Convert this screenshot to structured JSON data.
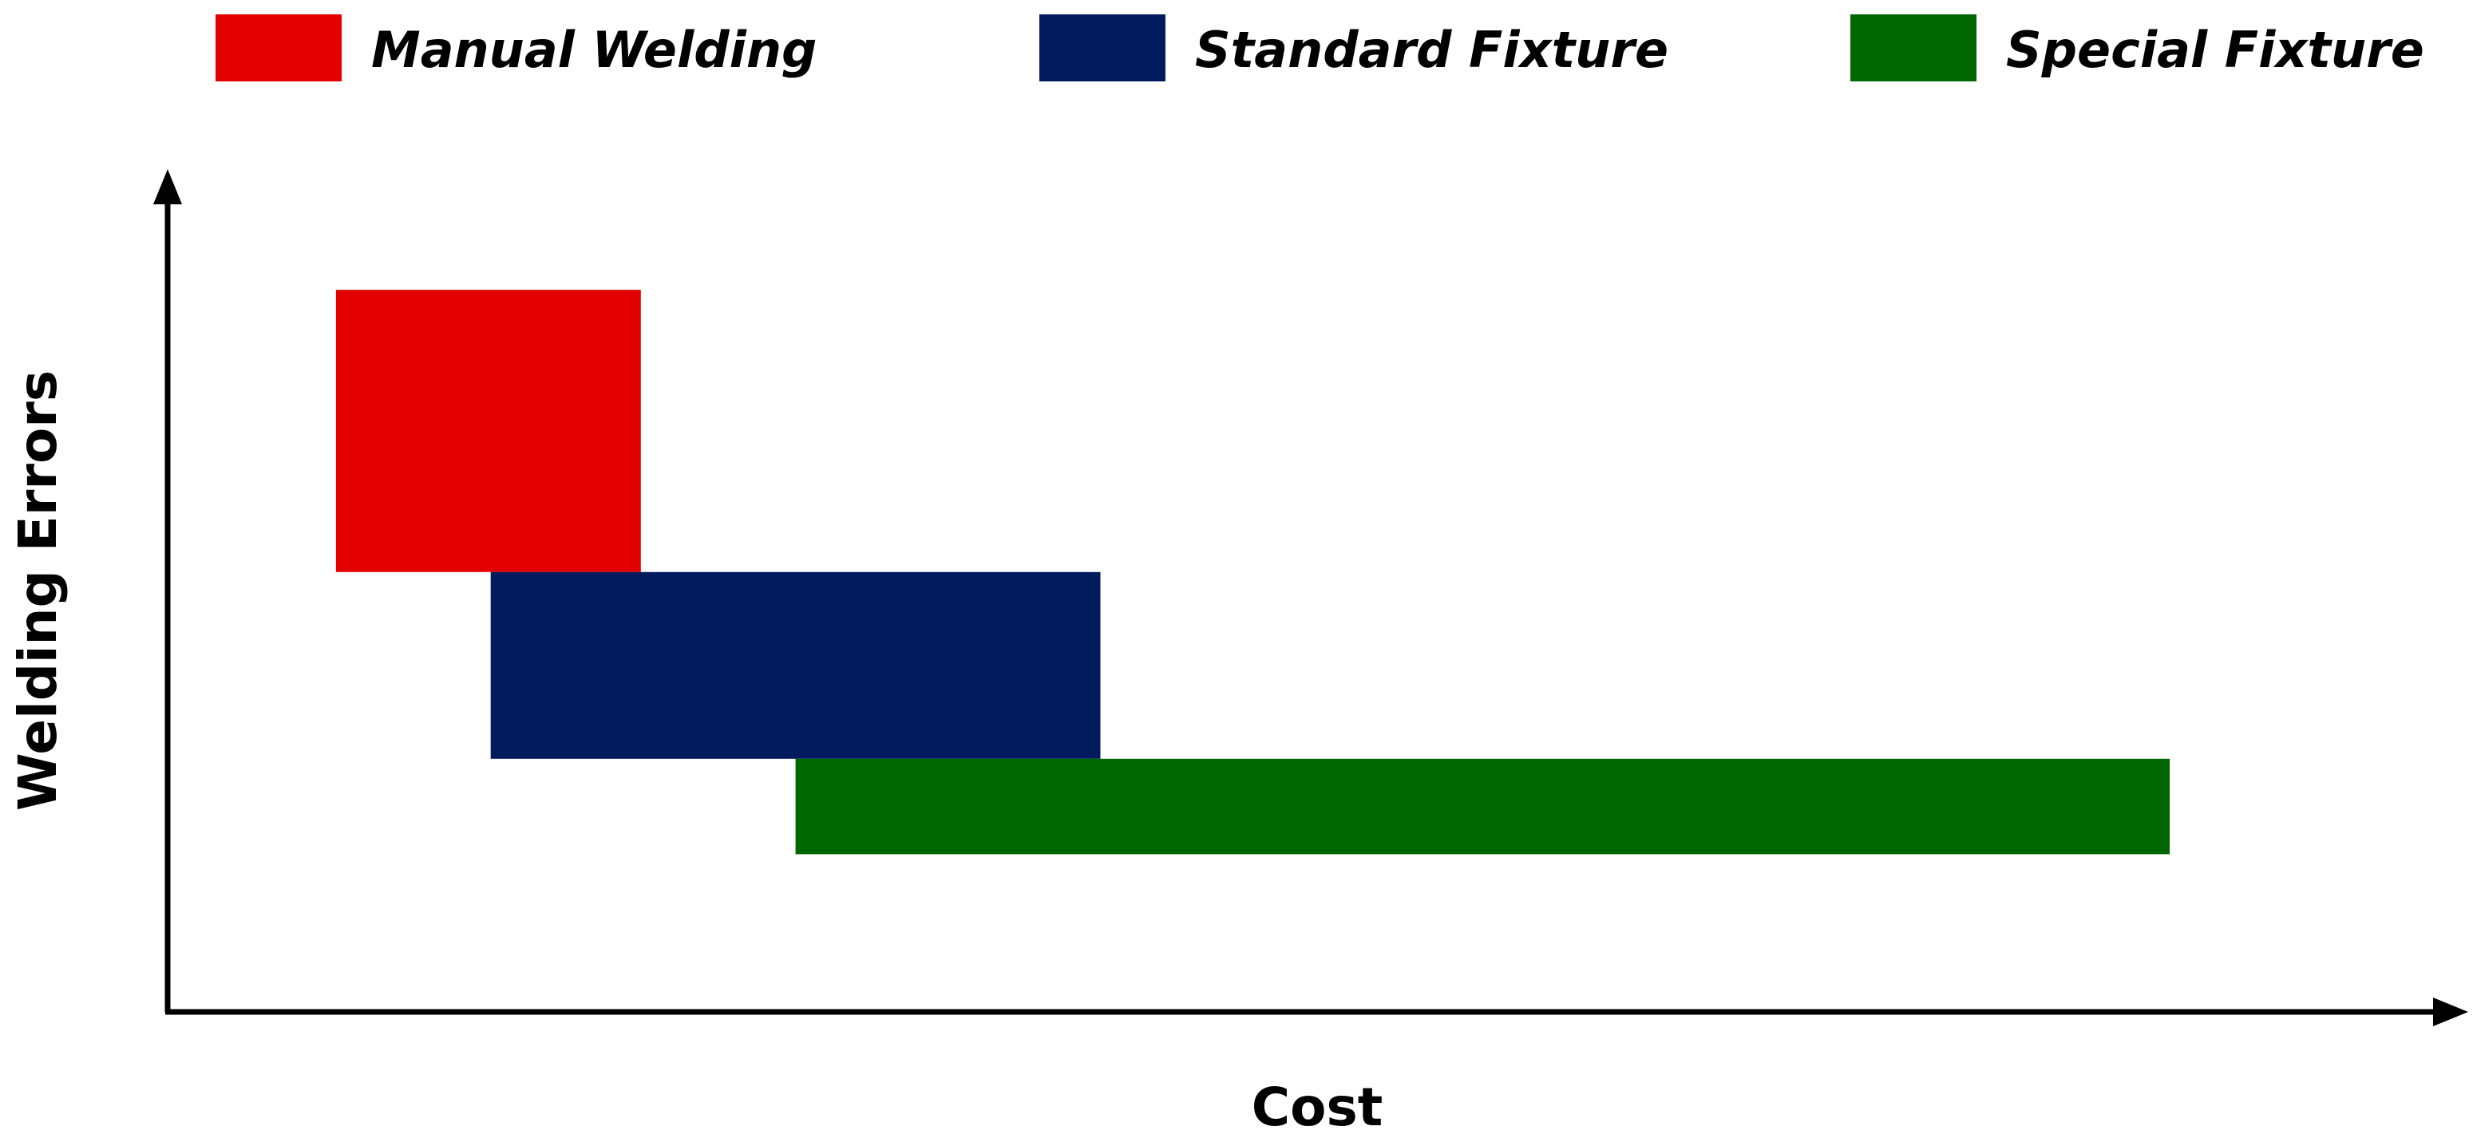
{
  "chart_data": {
    "type": "range-bar",
    "title": "",
    "xlabel": "Cost",
    "ylabel": "Welding Errors",
    "grid": false,
    "legend_position": "top",
    "xlim": [
      0,
      100
    ],
    "ylim": [
      0,
      100
    ],
    "series": [
      {
        "name": "Manual Welding",
        "color": "#e30000",
        "x_range": [
          7.4,
          20.8
        ],
        "y_range": [
          53,
          87
        ]
      },
      {
        "name": "Standard Fixture",
        "color": "#001a5e",
        "x_range": [
          14.2,
          41
        ],
        "y_range": [
          30.5,
          53
        ]
      },
      {
        "name": "Special Fixture",
        "color": "#006600",
        "x_range": [
          27.6,
          88
        ],
        "y_range": [
          19,
          30.5
        ]
      }
    ]
  }
}
